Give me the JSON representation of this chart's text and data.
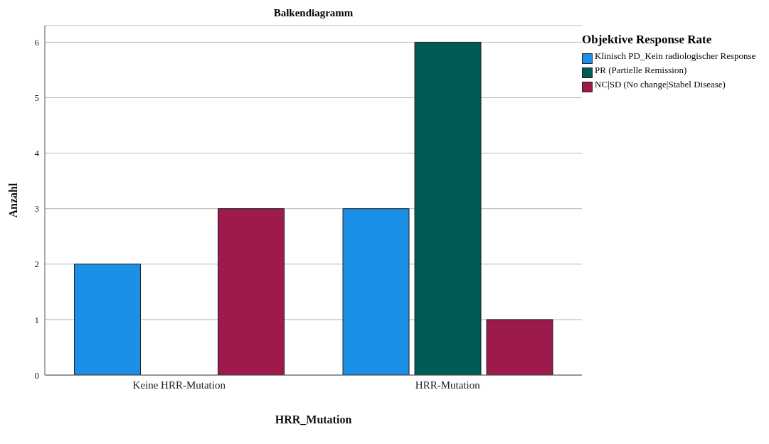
{
  "chart_data": {
    "type": "bar",
    "title": "Balkendiagramm",
    "xlabel": "HRR_Mutation",
    "ylabel": "Anzahl",
    "legend_title": "Objektive Response Rate",
    "categories": [
      "Keine HRR-Mutation",
      "HRR-Mutation"
    ],
    "series": [
      {
        "name": "Klinisch PD_Kein radiologischer Response",
        "color": "#1c8fe6",
        "values": [
          2,
          3
        ]
      },
      {
        "name": "PR (Partielle Remission)",
        "color": "#005b57",
        "values": [
          0,
          6
        ]
      },
      {
        "name": "NC|SD (No change|Stabel Disease)",
        "color": "#9d1a4d",
        "values": [
          3,
          1
        ]
      }
    ],
    "ylim": [
      0,
      6.3
    ],
    "yticks": [
      0,
      1,
      2,
      3,
      4,
      5,
      6
    ],
    "grid": "y",
    "legend": "top right"
  }
}
